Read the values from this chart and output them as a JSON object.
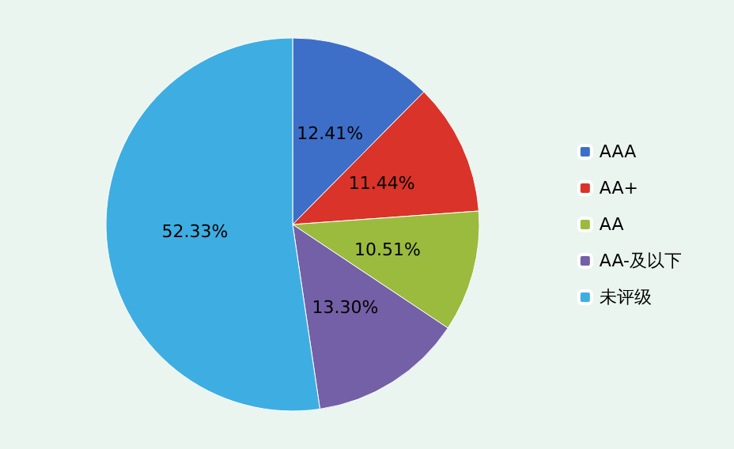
{
  "chart_data": {
    "type": "pie",
    "categories": [
      "AAA",
      "AA+",
      "AA",
      "AA-及以下",
      "未评级"
    ],
    "values": [
      12.41,
      11.44,
      10.51,
      13.3,
      52.33
    ],
    "value_labels": [
      "12.41%",
      "11.44%",
      "10.51%",
      "13.30%",
      "52.33%"
    ],
    "colors": [
      "#3d6fc9",
      "#d9332a",
      "#9bbb3e",
      "#7460a6",
      "#3eaee2"
    ],
    "legend": "right"
  }
}
